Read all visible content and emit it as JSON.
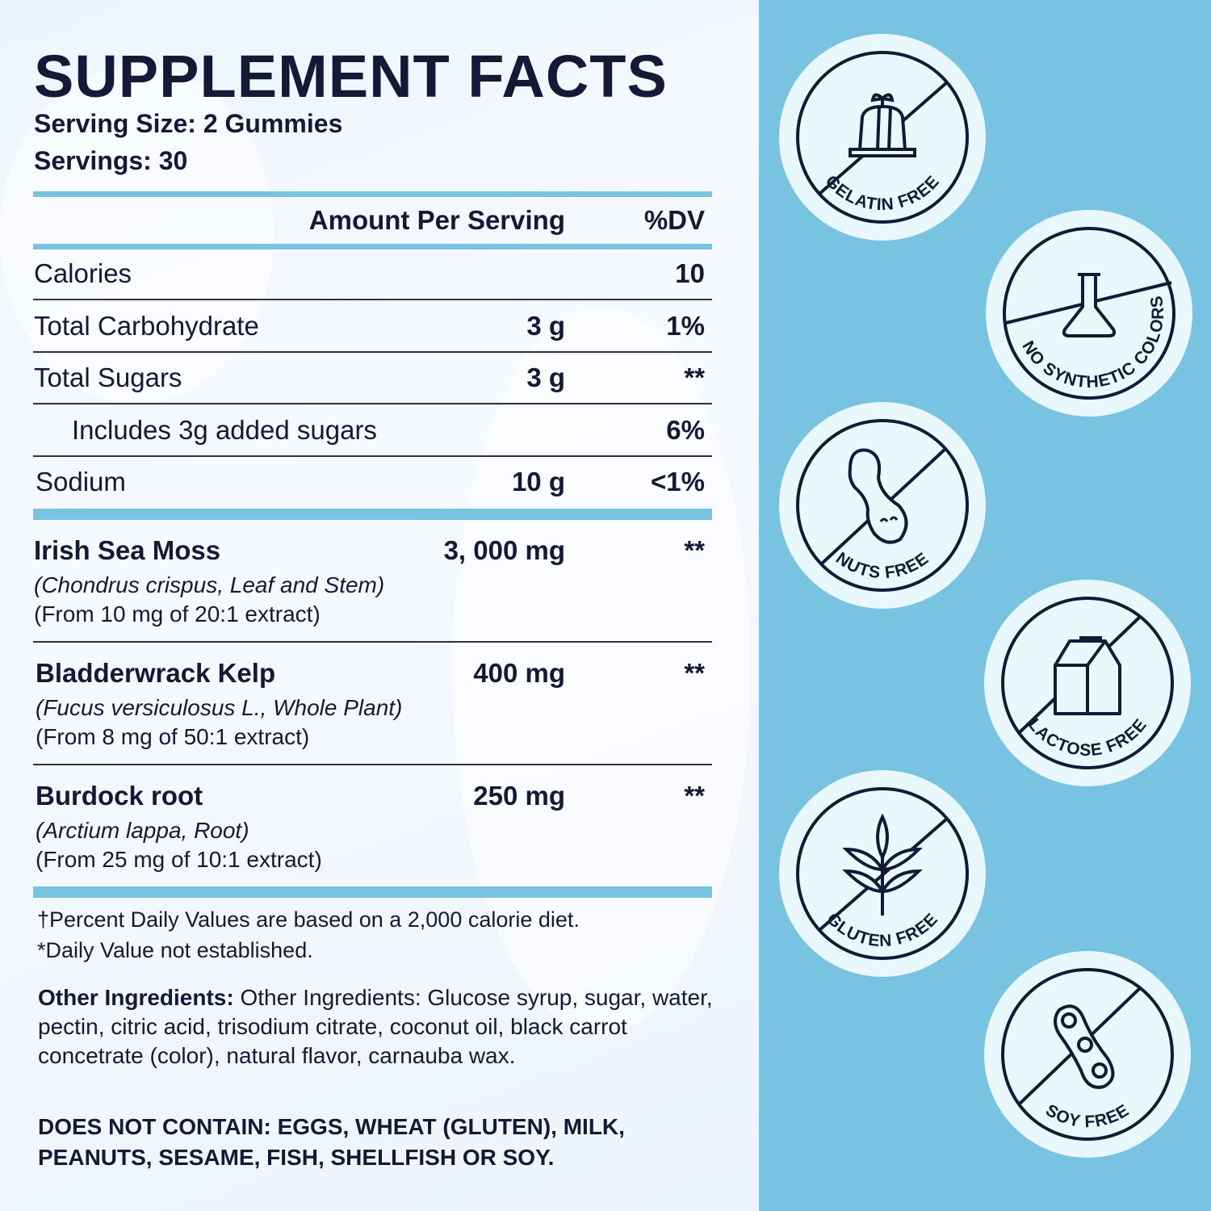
{
  "title": "SUPPLEMENT FACTS",
  "serving_size": "Serving Size: 2 Gummies",
  "servings": "Servings: 30",
  "header": {
    "amount": "Amount Per Serving",
    "dv": "%DV"
  },
  "nutrients": [
    {
      "name": "Calories",
      "amount": "",
      "dv": "10"
    },
    {
      "name": "Total Carbohydrate",
      "amount": "3 g",
      "dv": "1%"
    },
    {
      "name": "Total Sugars",
      "amount": "3 g",
      "dv": "**"
    },
    {
      "name": "Includes 3g added sugars",
      "amount": "",
      "dv": "6%"
    },
    {
      "name": "Sodium",
      "amount": "10 g",
      "dv": "<1%"
    }
  ],
  "ingredients": [
    {
      "name": "Irish Sea Moss",
      "amount": "3, 000 mg",
      "dv": "**",
      "latin": "(Chondrus crispus, Leaf and Stem)",
      "extract": "(From 10 mg of 20:1 extract)"
    },
    {
      "name": "Bladderwrack Kelp",
      "amount": "400 mg",
      "dv": "**",
      "latin": "(Fucus versiculosus L., Whole Plant)",
      "extract": "(From 8 mg of 50:1 extract)"
    },
    {
      "name": "Burdock root",
      "amount": "250 mg",
      "dv": "**",
      "latin": "(Arctium lappa, Root)",
      "extract": "(From 25 mg of 10:1 extract)"
    }
  ],
  "footnotes": [
    "†Percent Daily Values are based on a 2,000 calorie diet.",
    "*Daily Value not established."
  ],
  "other_ingredients": {
    "label": "Other Ingredients:",
    "text": " Other Ingredients: Glucose syrup, sugar, water, pectin, citric acid, trisodium citrate, coconut oil, black carrot concetrate (color), natural flavor, carnauba wax."
  },
  "allergen": "DOES NOT CONTAIN: EGGS, WHEAT (GLUTEN), MILK, PEANUTS, SESAME, FISH, SHELLFISH OR SOY.",
  "badges": [
    {
      "label": "GELATIN FREE",
      "icon": "gelatin-icon"
    },
    {
      "label": "NO SYNTHETIC COLORS",
      "icon": "flask-icon"
    },
    {
      "label": "NUTS FREE",
      "icon": "peanut-icon"
    },
    {
      "label": "LACTOSE FREE",
      "icon": "milk-carton-icon"
    },
    {
      "label": "GLUTEN FREE",
      "icon": "wheat-icon"
    },
    {
      "label": "SOY FREE",
      "icon": "soybean-icon"
    }
  ],
  "colors": {
    "accent": "#78c3e2",
    "text": "#121a35",
    "badge_fill": "#e9f8fc"
  }
}
